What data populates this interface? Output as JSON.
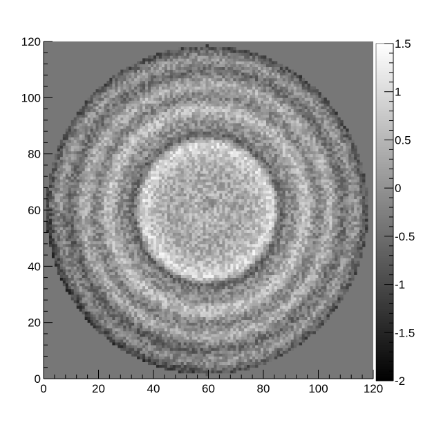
{
  "chart_data": {
    "type": "heatmap",
    "title": "",
    "xlabel": "",
    "ylabel": "",
    "xlim": [
      0,
      120
    ],
    "ylim": [
      0,
      120
    ],
    "x_ticks": [
      0,
      20,
      40,
      60,
      80,
      100,
      120
    ],
    "y_ticks": [
      0,
      20,
      40,
      60,
      80,
      100,
      120
    ],
    "bins": 120,
    "colorbar": {
      "range": [
        -2,
        1.5
      ],
      "ticks": [
        1.5,
        1,
        0.5,
        0,
        -0.5,
        -1,
        -1.5,
        -2
      ],
      "tick_labels": [
        "1.5",
        "1",
        "0.5",
        "0",
        "-0.5",
        "-1",
        "-1.5",
        "-2"
      ],
      "palette": "grayscale"
    },
    "background_value": 0,
    "features": {
      "disc": {
        "center": [
          59.5,
          60
        ],
        "radius": 58.5
      },
      "dark_ring": {
        "center": [
          59.5,
          60
        ],
        "radius": 27,
        "value": -1.3
      },
      "center_spot": {
        "center": [
          59.5,
          62
        ],
        "radius": 3,
        "value": -0.6
      },
      "inner_region_value": 0.45,
      "outer_ring_period": 9,
      "edge_value": -0.9
    },
    "colors": {
      "background": "#777777",
      "axis": "#000000"
    }
  }
}
